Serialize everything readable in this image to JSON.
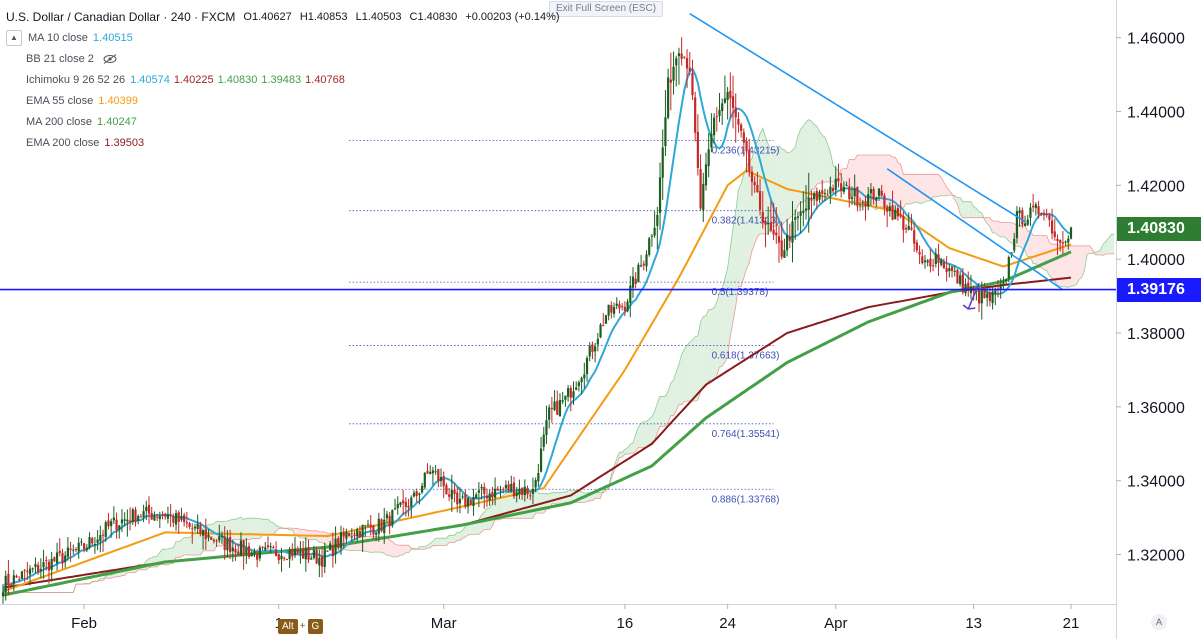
{
  "header": {
    "symbol": "U.S. Dollar / Canadian Dollar · 240 · FXCM",
    "ohlc": {
      "open": "O1.40627",
      "high": "H1.40853",
      "low": "L1.40503",
      "close": "C1.40830",
      "change": "+0.00203 (+0.14%)"
    },
    "exit_full_screen": "Exit Full Screen (ESC)"
  },
  "indicators": [
    {
      "name": "MA 10 close",
      "values": [
        {
          "text": "1.40515",
          "color": "#2fa8d8"
        }
      ]
    },
    {
      "name": "BB 21 close 2",
      "values": [],
      "hidden": true
    },
    {
      "name": "Ichimoku 9 26 52 26",
      "values": [
        {
          "text": "1.40574",
          "color": "#2fa8d8"
        },
        {
          "text": "1.40225",
          "color": "#a52727"
        },
        {
          "text": "1.40830",
          "color": "#43a047"
        },
        {
          "text": "1.39483",
          "color": "#43a047"
        },
        {
          "text": "1.40768",
          "color": "#a52727"
        }
      ]
    },
    {
      "name": "EMA 55 close",
      "values": [
        {
          "text": "1.40399",
          "color": "#f39c12"
        }
      ]
    },
    {
      "name": "MA 200 close",
      "values": [
        {
          "text": "1.40247",
          "color": "#43a047"
        }
      ]
    },
    {
      "name": "EMA 200 close",
      "values": [
        {
          "text": "1.39503",
          "color": "#8b1a1a"
        }
      ]
    }
  ],
  "price_tags": [
    {
      "text": "1.40830",
      "value": 1.4083,
      "color": "#2e7d32"
    },
    {
      "text": "1.39176",
      "value": 1.39176,
      "color": "#1a1aff"
    }
  ],
  "keyboard_hint": {
    "key1": "Alt",
    "plus": "+",
    "key2": "G"
  },
  "auto_label": "A",
  "colors": {
    "up": "#1b5e20",
    "down": "#c62828",
    "ma10": "#2fa8d8",
    "ema55": "#f39c12",
    "ma200": "#43a047",
    "ema200": "#8b1a1a",
    "trendline": "#2196f3",
    "support": "#1a1aff",
    "fib": "#3f51b5",
    "cloud_bull": "#c8e6c9",
    "cloud_bear": "#ffcdd2"
  },
  "chart_data": {
    "type": "candlestick",
    "y_axis": {
      "ticks": [
        "1.32000",
        "1.34000",
        "1.36000",
        "1.38000",
        "1.40000",
        "1.42000",
        "1.44000",
        "1.46000"
      ],
      "range": [
        1.3066,
        1.4702
      ],
      "side": "right"
    },
    "x_axis": {
      "labels": [
        "Feb",
        "1",
        "Mar",
        "16",
        "24",
        "Apr",
        "13",
        "21"
      ],
      "label_bars": [
        30,
        102,
        163,
        230,
        268,
        308,
        359,
        395
      ]
    },
    "bar_count": 400,
    "anchors": [
      [
        0,
        1.312
      ],
      [
        12,
        1.316
      ],
      [
        30,
        1.322
      ],
      [
        40,
        1.328
      ],
      [
        50,
        1.331
      ],
      [
        60,
        1.331
      ],
      [
        70,
        1.327
      ],
      [
        82,
        1.323
      ],
      [
        95,
        1.32
      ],
      [
        105,
        1.321
      ],
      [
        118,
        1.319
      ],
      [
        128,
        1.326
      ],
      [
        140,
        1.328
      ],
      [
        152,
        1.335
      ],
      [
        158,
        1.343
      ],
      [
        162,
        1.34
      ],
      [
        168,
        1.333
      ],
      [
        175,
        1.336
      ],
      [
        188,
        1.338
      ],
      [
        196,
        1.337
      ],
      [
        202,
        1.358
      ],
      [
        208,
        1.362
      ],
      [
        215,
        1.371
      ],
      [
        223,
        1.385
      ],
      [
        230,
        1.388
      ],
      [
        237,
        1.4
      ],
      [
        242,
        1.413
      ],
      [
        246,
        1.447
      ],
      [
        250,
        1.458
      ],
      [
        254,
        1.452
      ],
      [
        258,
        1.414
      ],
      [
        263,
        1.438
      ],
      [
        268,
        1.445
      ],
      [
        273,
        1.433
      ],
      [
        278,
        1.418
      ],
      [
        283,
        1.408
      ],
      [
        288,
        1.402
      ],
      [
        293,
        1.41
      ],
      [
        298,
        1.415
      ],
      [
        303,
        1.418
      ],
      [
        308,
        1.42
      ],
      [
        313,
        1.418
      ],
      [
        318,
        1.416
      ],
      [
        323,
        1.418
      ],
      [
        330,
        1.412
      ],
      [
        335,
        1.408
      ],
      [
        340,
        1.398
      ],
      [
        345,
        1.401
      ],
      [
        350,
        1.397
      ],
      [
        355,
        1.393
      ],
      [
        360,
        1.39
      ],
      [
        365,
        1.389
      ],
      [
        370,
        1.392
      ],
      [
        375,
        1.411
      ],
      [
        380,
        1.412
      ],
      [
        385,
        1.414
      ],
      [
        390,
        1.405
      ],
      [
        395,
        1.408
      ]
    ],
    "lines": {
      "ema55": [
        [
          0,
          1.31
        ],
        [
          60,
          1.326
        ],
        [
          120,
          1.325
        ],
        [
          170,
          1.333
        ],
        [
          200,
          1.338
        ],
        [
          230,
          1.37
        ],
        [
          250,
          1.395
        ],
        [
          268,
          1.42
        ],
        [
          275,
          1.424
        ],
        [
          290,
          1.419
        ],
        [
          310,
          1.416
        ],
        [
          330,
          1.413
        ],
        [
          350,
          1.403
        ],
        [
          370,
          1.398
        ],
        [
          395,
          1.404
        ]
      ],
      "ma200": [
        [
          0,
          1.309
        ],
        [
          60,
          1.318
        ],
        [
          120,
          1.322
        ],
        [
          170,
          1.328
        ],
        [
          210,
          1.334
        ],
        [
          240,
          1.344
        ],
        [
          260,
          1.357
        ],
        [
          290,
          1.372
        ],
        [
          320,
          1.383
        ],
        [
          350,
          1.391
        ],
        [
          370,
          1.394
        ],
        [
          395,
          1.402
        ]
      ],
      "ema200": [
        [
          0,
          1.311
        ],
        [
          60,
          1.318
        ],
        [
          120,
          1.322
        ],
        [
          170,
          1.328
        ],
        [
          210,
          1.336
        ],
        [
          240,
          1.35
        ],
        [
          260,
          1.366
        ],
        [
          290,
          1.38
        ],
        [
          320,
          1.387
        ],
        [
          350,
          1.391
        ],
        [
          370,
          1.393
        ],
        [
          395,
          1.395
        ]
      ]
    },
    "trendlines": [
      {
        "from": [
          254,
          1.4665
        ],
        "to": [
          378,
          1.4102
        ]
      },
      {
        "from": [
          327,
          1.4245
        ],
        "to": [
          392,
          1.3917
        ]
      }
    ],
    "support_level": 1.39176,
    "fibonacci": [
      {
        "label": "0.236(1.43215)",
        "value": 1.43215
      },
      {
        "label": "0.382(1.41313)",
        "value": 1.41313
      },
      {
        "label": "0.5(1.39378)",
        "value": 1.39378
      },
      {
        "label": "0.618(1.37663)",
        "value": 1.37663
      },
      {
        "label": "0.764(1.35541)",
        "value": 1.35541
      },
      {
        "label": "0.886(1.33768)",
        "value": 1.33768
      }
    ],
    "fib_range": {
      "from_bar": 128,
      "to_bar": 285
    },
    "arrow": {
      "from": [
        361,
        1.3935
      ],
      "to": [
        357,
        1.3865
      ]
    },
    "grid": false,
    "legend": "top-left"
  }
}
